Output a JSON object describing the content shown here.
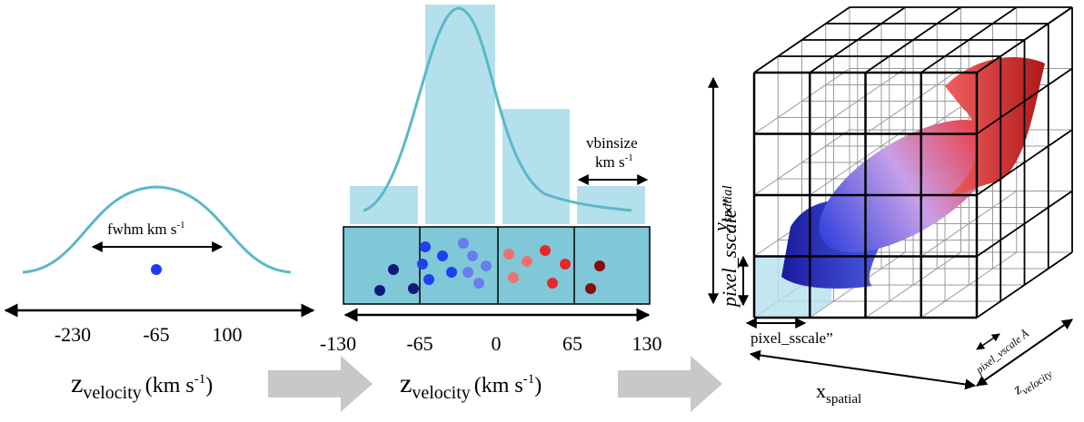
{
  "panel1": {
    "fwhm": {
      "text": "fwhm km s",
      "sup": "-1"
    },
    "ticks": [
      "-230",
      "-65",
      "100"
    ],
    "axis_label": {
      "var": "z",
      "sub": "velocity",
      "unit": "(km s",
      "sup": "-1",
      "close": ")"
    }
  },
  "panel2": {
    "bin_label": {
      "line1": "vbinsize",
      "line2": "km s",
      "sup": "-1"
    },
    "ticks": [
      "-130",
      "-65",
      "0",
      "65",
      "130"
    ],
    "axis_label": {
      "var": "z",
      "sub": "velocity",
      "unit": "(km s",
      "sup": "-1",
      "close": ")"
    }
  },
  "panel3": {
    "y_label": {
      "var": "y",
      "sub": "spatial"
    },
    "pixel_sscale_vertical": "pixel_sscale”",
    "pixel_sscale_horizontal": "pixel_sscale”",
    "pixel_vscale": "pixel_vscale Å",
    "x_label": {
      "var": "x",
      "sub": "spatial"
    },
    "z_label": {
      "var": "z",
      "sub": "velocity"
    }
  }
}
